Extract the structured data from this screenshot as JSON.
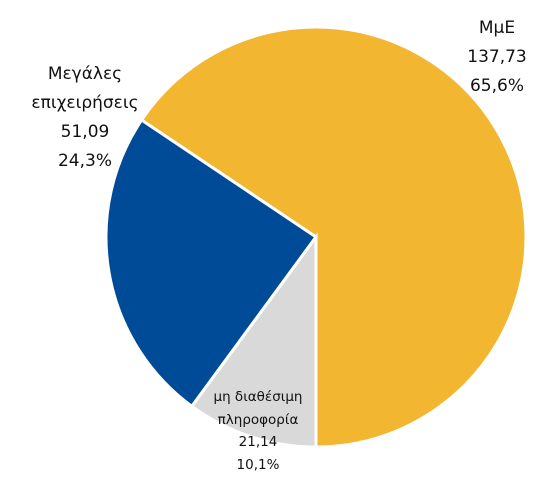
{
  "chart_data": {
    "type": "pie",
    "categories": [
      "MμΕ",
      "Μεγάλες επιχειρήσεις",
      "μη διαθέσιμη πληροφορία"
    ],
    "values": [
      137.73,
      51.09,
      21.14
    ],
    "value_labels": [
      "137,73",
      "51,09",
      "21,14"
    ],
    "percents": [
      65.6,
      24.3,
      10.1
    ],
    "percent_labels": [
      "65,6%",
      "24,3%",
      "10,1%"
    ],
    "colors": [
      "#f2b630",
      "#004b97",
      "#d9d9d9"
    ]
  }
}
